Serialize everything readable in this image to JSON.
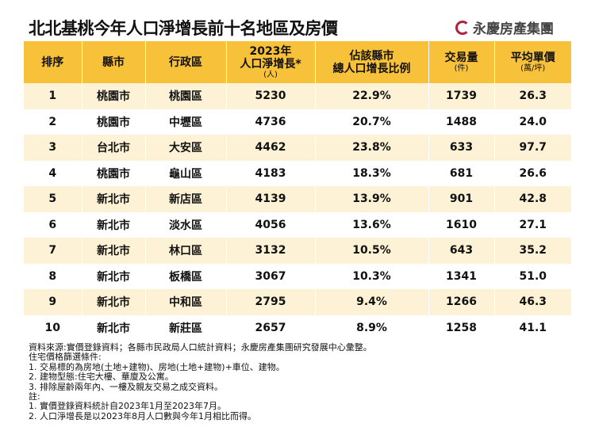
{
  "title": "北北基桃今年人口淨增長前十名地區及房價",
  "logo": "永慶房產集團",
  "headers": [
    {
      "l1": "排序"
    },
    {
      "l1": "縣市"
    },
    {
      "l1": "行政區"
    },
    {
      "l0": "2023年",
      "l1": "人口淨增長*",
      "sub": "(人)"
    },
    {
      "l0": "佔該縣市",
      "l1": "總人口增長比例"
    },
    {
      "l1": "交易量",
      "sub": "(件)"
    },
    {
      "l1": "平均單價",
      "sub": "(萬/坪)"
    }
  ],
  "rows": [
    [
      "1",
      "桃園市",
      "桃園區",
      "5230",
      "22.9%",
      "1739",
      "26.3"
    ],
    [
      "2",
      "桃園市",
      "中壢區",
      "4736",
      "20.7%",
      "1488",
      "24.0"
    ],
    [
      "3",
      "台北市",
      "大安區",
      "4462",
      "23.8%",
      "633",
      "97.7"
    ],
    [
      "4",
      "桃園市",
      "龜山區",
      "4183",
      "18.3%",
      "681",
      "26.6"
    ],
    [
      "5",
      "新北市",
      "新店區",
      "4139",
      "13.9%",
      "901",
      "42.8"
    ],
    [
      "6",
      "新北市",
      "淡水區",
      "4056",
      "13.6%",
      "1610",
      "27.1"
    ],
    [
      "7",
      "新北市",
      "林口區",
      "3132",
      "10.5%",
      "643",
      "35.2"
    ],
    [
      "8",
      "新北市",
      "板橋區",
      "3067",
      "10.3%",
      "1341",
      "51.0"
    ],
    [
      "9",
      "新北市",
      "中和區",
      "2795",
      "9.4%",
      "1266",
      "46.3"
    ],
    [
      "10",
      "新北市",
      "新莊區",
      "2657",
      "8.9%",
      "1258",
      "41.1"
    ]
  ],
  "notes": [
    "資料來源:實價登錄資料；各縣市民政局人口統計資料；永慶房產集團研究發展中心彙整。",
    "住宅價格篩選條件:",
    "1. 交易標的為房地(土地+建物)、房地(土地+建物)+車位、建物。",
    "2. 建物型態:住宅大樓、華廈及公寓。",
    "3. 排除屋齡兩年內、一樓及親友交易之成交資料。",
    "註:",
    "1. 實價登錄資料統計自2023年1月至2023年7月。",
    "2. 人口淨增長是以2023年8月人口數與今年1月相比而得。"
  ],
  "colors": {
    "header": "#f8c13a",
    "stripe": "#fdf2d6",
    "logo": "#b0233a"
  }
}
